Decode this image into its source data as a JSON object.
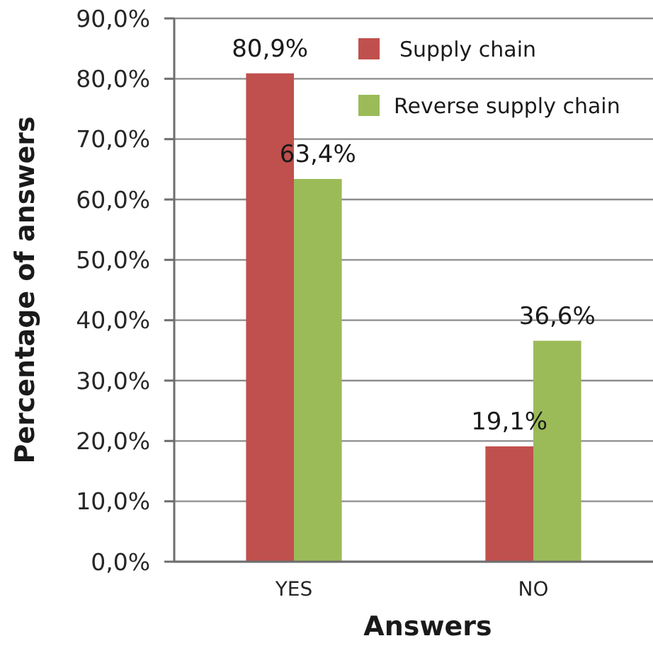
{
  "chart_data": {
    "type": "bar",
    "categories": [
      "YES",
      "NO"
    ],
    "series": [
      {
        "name": "Supply chain",
        "color": "#c0504d",
        "values": [
          80.9,
          19.1
        ],
        "value_labels": [
          "80,9%",
          "19,1%"
        ]
      },
      {
        "name": "Reverse supply chain",
        "color": "#9bbb59",
        "values": [
          63.4,
          36.6
        ],
        "value_labels": [
          "63,4%",
          "36,6%"
        ]
      }
    ],
    "xlabel": "Answers",
    "ylabel": "Percentage of answers",
    "ylim": [
      0,
      90
    ],
    "yticks": [
      {
        "value": 0,
        "label": "0,0%"
      },
      {
        "value": 10,
        "label": "10,0%"
      },
      {
        "value": 20,
        "label": "20,0%"
      },
      {
        "value": 30,
        "label": "30,0%"
      },
      {
        "value": 40,
        "label": "40,0%"
      },
      {
        "value": 50,
        "label": "50,0%"
      },
      {
        "value": 60,
        "label": "60,0%"
      },
      {
        "value": 70,
        "label": "70,0%"
      },
      {
        "value": 80,
        "label": "80,0%"
      },
      {
        "value": 90,
        "label": "90,0%"
      }
    ],
    "grid": "y",
    "legend": "top right"
  }
}
